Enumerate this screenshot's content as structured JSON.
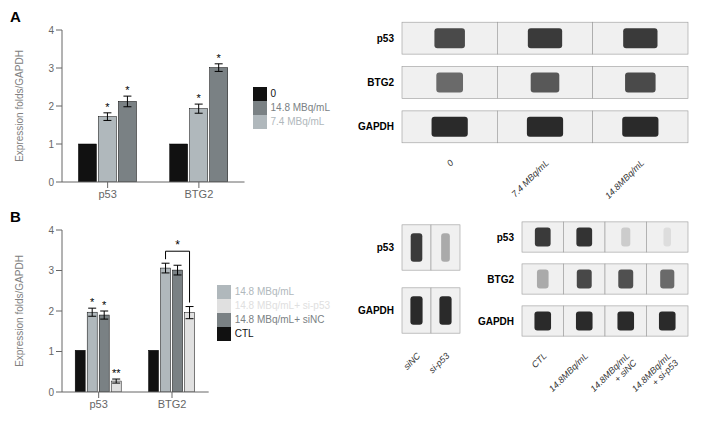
{
  "chart_data": [
    {
      "type": "bar",
      "title": "A",
      "categories": [
        "p53",
        "BTG2"
      ],
      "ylabel": "Expression folds/GAPDH",
      "ylim": [
        0,
        4
      ],
      "yticks": [
        0,
        1,
        2,
        3,
        4
      ],
      "legend": "right",
      "series": [
        {
          "name": "0",
          "color": "#111111",
          "values": [
            1.0,
            1.0
          ],
          "errors": [
            0.0,
            0.0
          ],
          "stars": [
            null,
            null
          ]
        },
        {
          "name": "7.4 MBq/mL",
          "color": "#b0b8bc",
          "values": [
            1.72,
            1.93
          ],
          "errors": [
            0.1,
            0.12
          ],
          "stars": [
            "*",
            "*"
          ]
        },
        {
          "name": "14.8 MBq/mL",
          "color": "#7a8184",
          "values": [
            2.12,
            3.01
          ],
          "errors": [
            0.14,
            0.1
          ],
          "stars": [
            "*",
            "*"
          ]
        }
      ]
    },
    {
      "type": "bar",
      "title": "B",
      "categories": [
        "p53",
        "BTG2"
      ],
      "ylabel": "Expression folds/GAPDH",
      "ylim": [
        0,
        4
      ],
      "yticks": [
        0,
        1,
        2,
        3,
        4
      ],
      "legend": "right",
      "series": [
        {
          "name": "CTL",
          "color": "#111111",
          "values": [
            1.03,
            1.03
          ],
          "errors": [
            0.0,
            0.0
          ],
          "stars": [
            null,
            null
          ]
        },
        {
          "name": "14.8 MBq/mL",
          "color": "#b0b8bc",
          "values": [
            1.97,
            3.06
          ],
          "errors": [
            0.1,
            0.12
          ],
          "stars": [
            "*",
            null
          ]
        },
        {
          "name": "14.8 MBq/mL+ siNC",
          "color": "#7a8184",
          "values": [
            1.9,
            3.01
          ],
          "errors": [
            0.1,
            0.12
          ],
          "stars": [
            "*",
            null
          ]
        },
        {
          "name": "14.8 MBq/mL+ si-p53",
          "color": "#e0e0e0",
          "values": [
            0.27,
            1.96
          ],
          "errors": [
            0.05,
            0.15
          ],
          "stars": [
            "**",
            null
          ]
        }
      ],
      "annotations": [
        {
          "text": "*",
          "category": "BTG2",
          "from": "14.8 MBq/mL",
          "to": "14.8 MBq/mL+ si-p53"
        }
      ]
    },
    {
      "type": "blot",
      "categories": [
        "0",
        "7.4 MBq/mL",
        "14.8MBq/mL"
      ],
      "series": [
        {
          "name": "p53",
          "colors": [
            "#4a4a4a",
            "#3a3a3a",
            "#3a3a3a"
          ],
          "sizes": [
            0.32,
            0.36,
            0.36
          ]
        },
        {
          "name": "BTG2",
          "colors": [
            "#6a6a6a",
            "#585858",
            "#4a4a4a"
          ],
          "sizes": [
            0.28,
            0.3,
            0.32
          ]
        },
        {
          "name": "GAPDH",
          "colors": [
            "#2a2a2a",
            "#2a2a2a",
            "#2a2a2a"
          ],
          "sizes": [
            0.38,
            0.38,
            0.38
          ]
        }
      ]
    },
    {
      "type": "blot",
      "categories": [
        "siNC",
        "si-p53"
      ],
      "series": [
        {
          "name": "p53",
          "colors": [
            "#3a3a3a",
            "#aaaaaa"
          ],
          "sizes": [
            0.4,
            0.3
          ]
        },
        {
          "name": "GAPDH",
          "colors": [
            "#2a2a2a",
            "#2a2a2a"
          ],
          "sizes": [
            0.42,
            0.42
          ]
        }
      ]
    },
    {
      "type": "blot",
      "categories": [
        "CTL",
        "14.8MBq/mL",
        "14.8MBq/mL\n+ siNC",
        "14.8MBq/mL\n+ si-p53"
      ],
      "series": [
        {
          "name": "p53",
          "colors": [
            "#3a3a3a",
            "#333333",
            "#cccccc",
            "#dddddd"
          ],
          "sizes": [
            0.38,
            0.38,
            0.22,
            0.18
          ]
        },
        {
          "name": "BTG2",
          "colors": [
            "#aaaaaa",
            "#484848",
            "#505050",
            "#6a6a6a"
          ],
          "sizes": [
            0.28,
            0.36,
            0.36,
            0.34
          ]
        },
        {
          "name": "GAPDH",
          "colors": [
            "#2a2a2a",
            "#2a2a2a",
            "#2a2a2a",
            "#2a2a2a"
          ],
          "sizes": [
            0.4,
            0.4,
            0.4,
            0.4
          ]
        }
      ]
    }
  ]
}
